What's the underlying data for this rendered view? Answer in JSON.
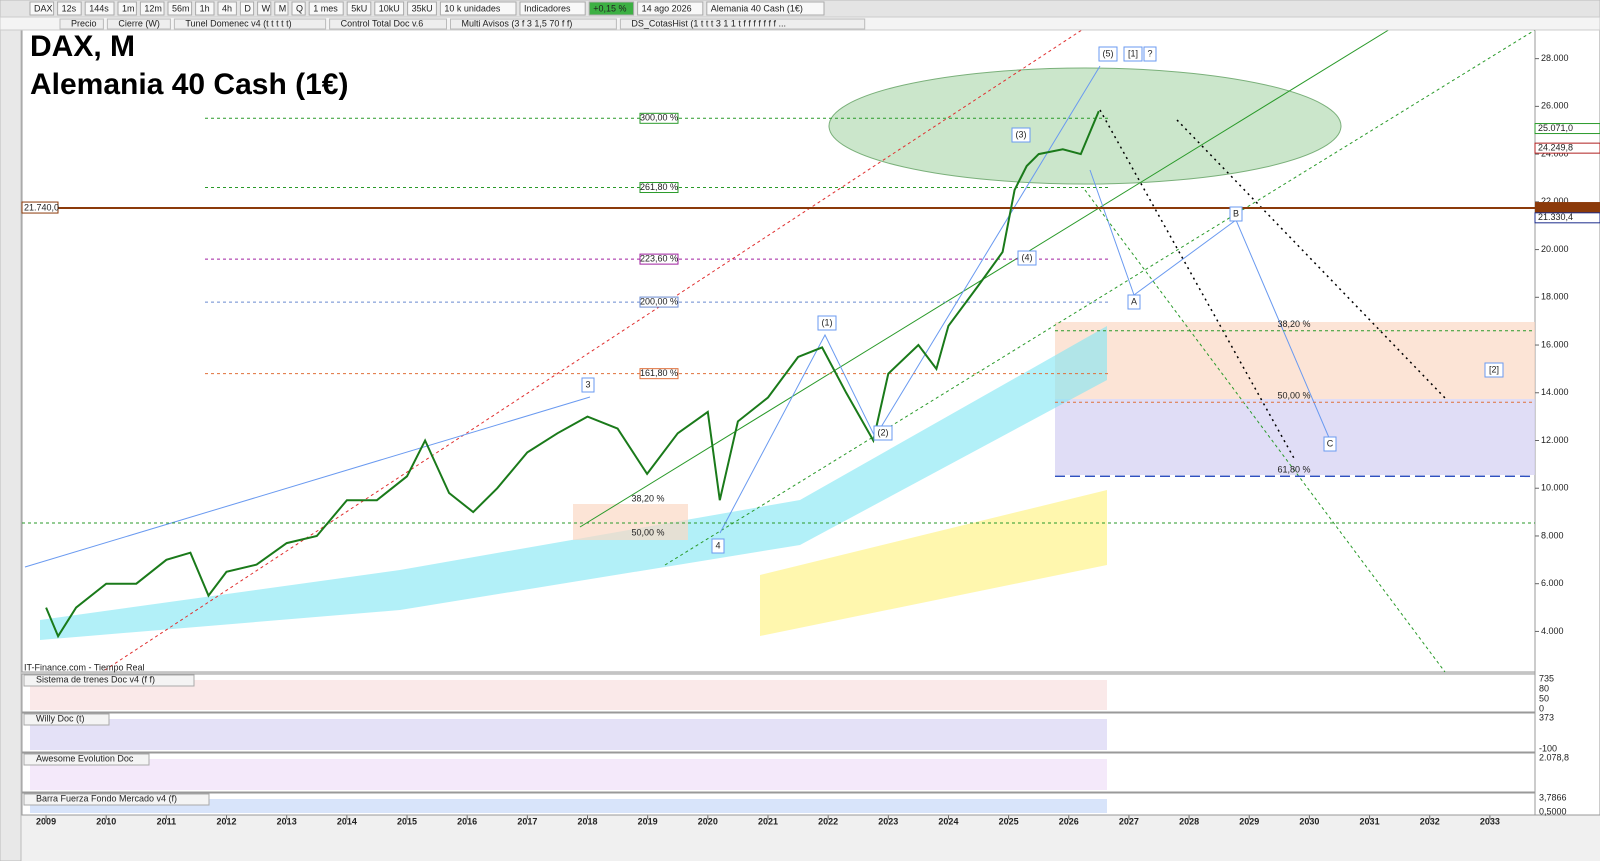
{
  "toolbar": {
    "items": [
      "DAX",
      "12s",
      "144s",
      "1m",
      "12m",
      "56m",
      "1h",
      "4h",
      "D",
      "W",
      "M",
      "Q",
      "1 mes",
      "5kU",
      "10kU",
      "35kU",
      "10 k unidades",
      "Indicadores",
      "+0,15 %",
      "14 ago 2026",
      "Alemania 40 Cash (1€)"
    ]
  },
  "studies": [
    "Precio",
    "Cierre (W)",
    "Tunel Domenec v4 (t t t t t)",
    "Control Total Doc v.6",
    "Multi Avisos (3 f 3 1,5 70 f f)",
    "DS_CotasHist (1 t t t 3 1 1 t f f f f f f f ..."
  ],
  "title": "DAX, M",
  "subtitle": "Alemania 40 Cash (1€)",
  "source": "IT-Finance.com - Tiempo Real",
  "chart": {
    "x": [
      2009.0,
      2009.2,
      2009.5,
      2010.0,
      2010.5,
      2011.0,
      2011.4,
      2011.7,
      2012.0,
      2012.5,
      2013.0,
      2013.5,
      2014.0,
      2014.5,
      2015.0,
      2015.3,
      2015.7,
      2016.1,
      2016.5,
      2017.0,
      2017.5,
      2018.0,
      2018.5,
      2018.99,
      2019.5,
      2020.0,
      2020.2,
      2020.5,
      2021.0,
      2021.5,
      2021.9,
      2022.3,
      2022.75,
      2023.0,
      2023.5,
      2023.8,
      2024.0,
      2024.5,
      2024.9,
      2025.1,
      2025.3,
      2025.5,
      2025.9,
      2026.2,
      2026.5
    ],
    "values": [
      5000,
      3800,
      5000,
      6000,
      6000,
      7000,
      7300,
      5500,
      6500,
      6800,
      7700,
      8000,
      9500,
      9500,
      10500,
      12000,
      9800,
      9000,
      10000,
      11500,
      12300,
      13000,
      12500,
      10600,
      12300,
      13200,
      9500,
      12800,
      13800,
      15500,
      15900,
      14000,
      12000,
      14800,
      16000,
      15000,
      16800,
      18500,
      19900,
      22500,
      23500,
      24000,
      24200,
      24000,
      25800
    ],
    "ylim": [
      2300,
      29200
    ],
    "yticks": [
      {
        "value": 28000,
        "label": "28.000"
      },
      {
        "value": 26000,
        "label": "26.000"
      },
      {
        "value": 24000,
        "label": "24.000"
      },
      {
        "value": 22000,
        "label": "22.000"
      },
      {
        "value": 20000,
        "label": "20.000"
      },
      {
        "value": 18000,
        "label": "18.000"
      },
      {
        "value": 16000,
        "label": "16.000"
      },
      {
        "value": 14000,
        "label": "14.000"
      },
      {
        "value": 12000,
        "label": "12.000"
      },
      {
        "value": 10000,
        "label": "10.000"
      },
      {
        "value": 8000,
        "label": "8.000"
      },
      {
        "value": 6000,
        "label": "6.000"
      },
      {
        "value": 4000,
        "label": "4.000"
      }
    ],
    "xlim": [
      2008.6,
      2033.75
    ],
    "xticks": [
      2009,
      2010,
      2011,
      2012,
      2013,
      2014,
      2015,
      2016,
      2017,
      2018,
      2019,
      2020,
      2021,
      2022,
      2023,
      2024,
      2025,
      2026,
      2027,
      2028,
      2029,
      2030,
      2031,
      2032,
      2033
    ],
    "price_labels": [
      {
        "value": 25071,
        "label": "25.071,0",
        "color": "#2a9a2a"
      },
      {
        "value": 24249.8,
        "label": "24.249,8",
        "color": "#b02020"
      },
      {
        "value": 21330.4,
        "label": "21.330,4",
        "color": "#1c2c8c"
      }
    ],
    "level": {
      "value": 21740,
      "label": "21.740,0",
      "color": "#8b3a0a"
    },
    "fib_levels": [
      {
        "value": 25500,
        "label": "300,00 %",
        "color": "#2a9a2a"
      },
      {
        "value": 22600,
        "label": "261,80 %",
        "color": "#2a9a2a"
      },
      {
        "value": 19600,
        "label": "223,60 %",
        "color": "#a020a0"
      },
      {
        "value": 17800,
        "label": "200,00 %",
        "color": "#6a8ad0"
      },
      {
        "value": 14800,
        "label": "161,80 %",
        "color": "#e0703a"
      }
    ],
    "retracements": [
      {
        "value": 16600,
        "label": "38,20 %",
        "color": "#2a9a2a"
      },
      {
        "value": 13600,
        "label": "50,00 %",
        "color": "#e0703a"
      },
      {
        "value": 10500,
        "label": "61,80 %",
        "color": "#3050c0"
      }
    ],
    "waves": [
      "(5)",
      "[1]",
      "?",
      "(3)",
      "(4)",
      "(1)",
      "(2)",
      "3",
      "4",
      "B",
      "A",
      "C",
      "[2]"
    ],
    "low_fibs": [
      "38,20 %",
      "50,00 %"
    ]
  },
  "panels": [
    {
      "name": "Sistema de trenes Doc v4 (f f)",
      "labels": [
        "735",
        "80",
        "50",
        "0"
      ]
    },
    {
      "name": "Willy Doc (t)",
      "labels": [
        "373",
        "-100"
      ]
    },
    {
      "name": "Awesome Evolution Doc",
      "labels": [
        "2.078,8"
      ]
    },
    {
      "name": "Barra Fuerza Fondo Mercado v4 (f)",
      "labels": [
        "3,7866",
        "0,5000"
      ]
    }
  ]
}
